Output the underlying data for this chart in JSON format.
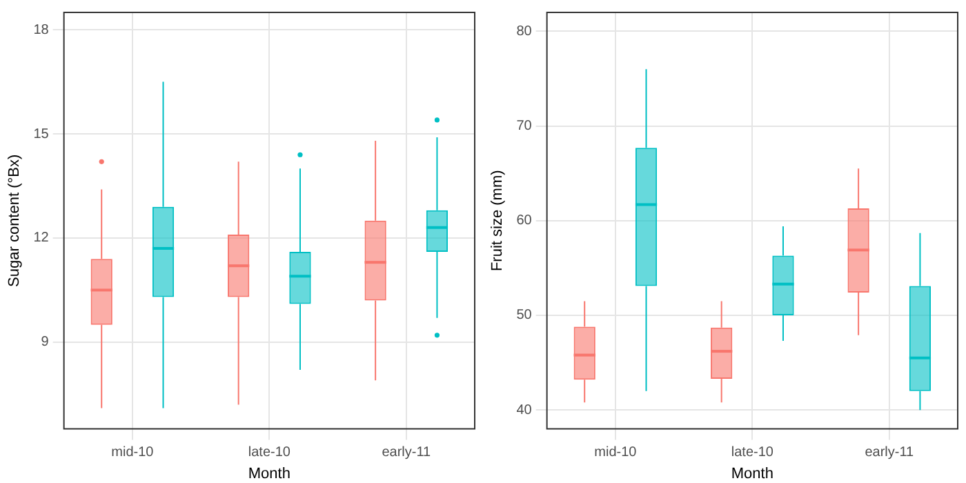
{
  "chart_data": [
    {
      "type": "box",
      "xlabel": "Month",
      "ylabel": "Sugar content (°Bx)",
      "categories": [
        "mid-10",
        "late-10",
        "early-11"
      ],
      "ylim": [
        6.5,
        18.5
      ],
      "yticks": [
        9,
        12,
        15,
        18
      ],
      "grid": true,
      "legend": false,
      "series": [
        {
          "color": "#f8766d",
          "boxes": [
            {
              "low": 7.1,
              "q1": 9.5,
              "median": 10.5,
              "q3": 11.4,
              "high": 13.4,
              "outliers": [
                14.2
              ]
            },
            {
              "low": 7.2,
              "q1": 10.3,
              "median": 11.2,
              "q3": 12.1,
              "high": 14.2
            },
            {
              "low": 7.9,
              "q1": 10.2,
              "median": 11.3,
              "q3": 12.5,
              "high": 14.8
            }
          ]
        },
        {
          "color": "#00bfc4",
          "boxes": [
            {
              "low": 7.1,
              "q1": 10.3,
              "median": 11.7,
              "q3": 12.9,
              "high": 16.5
            },
            {
              "low": 8.2,
              "q1": 10.1,
              "median": 10.9,
              "q3": 11.6,
              "high": 14.0,
              "outliers": [
                14.4
              ]
            },
            {
              "low": 9.7,
              "q1": 11.6,
              "median": 12.3,
              "q3": 12.8,
              "high": 14.9,
              "outliers": [
                15.4,
                9.2
              ]
            }
          ]
        }
      ]
    },
    {
      "type": "box",
      "xlabel": "Month",
      "ylabel": "Fruit size (mm)",
      "categories": [
        "mid-10",
        "late-10",
        "early-11"
      ],
      "ylim": [
        38,
        82
      ],
      "yticks": [
        40,
        50,
        60,
        70,
        80
      ],
      "grid": true,
      "legend": false,
      "series": [
        {
          "color": "#f8766d",
          "boxes": [
            {
              "low": 40.8,
              "q1": 43.2,
              "median": 45.8,
              "q3": 48.8,
              "high": 51.5
            },
            {
              "low": 40.8,
              "q1": 43.3,
              "median": 46.2,
              "q3": 48.7,
              "high": 51.5
            },
            {
              "low": 47.9,
              "q1": 52.4,
              "median": 56.9,
              "q3": 61.3,
              "high": 65.5
            }
          ]
        },
        {
          "color": "#00bfc4",
          "boxes": [
            {
              "low": 42,
              "q1": 53.1,
              "median": 61.7,
              "q3": 67.7,
              "high": 76
            },
            {
              "low": 47.3,
              "q1": 50,
              "median": 53.3,
              "q3": 56.3,
              "high": 59.4
            },
            {
              "low": 40,
              "q1": 42,
              "median": 45.5,
              "q3": 53.1,
              "high": 58.7
            }
          ]
        }
      ]
    }
  ]
}
